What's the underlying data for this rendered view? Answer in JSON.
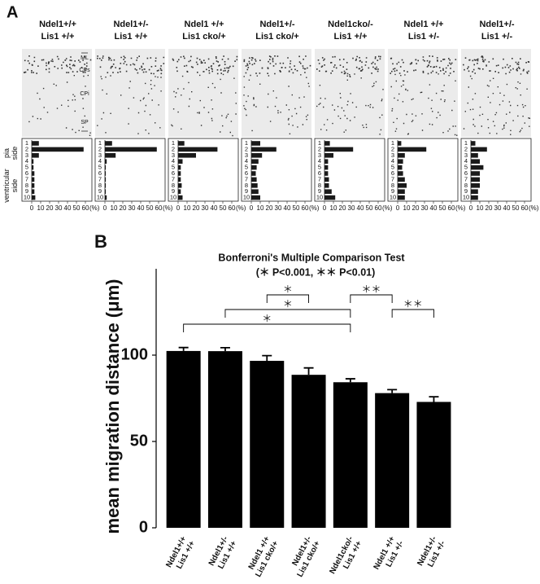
{
  "panel_a": {
    "label": "A",
    "headers": [
      [
        "Ndel1+/+",
        "Lis1 +/+"
      ],
      [
        "Ndel1+/-",
        "Lis1 +/+"
      ],
      [
        "Ndel1 +/+",
        "Lis1 cko/+"
      ],
      [
        "Ndel1+/-",
        "Lis1 cko/+"
      ],
      [
        "Ndel1cko/-",
        "Lis1 +/+"
      ],
      [
        "Ndel1 +/+",
        "Lis1 +/-"
      ],
      [
        "Ndel1+/-",
        "Lis1 +/-"
      ]
    ],
    "layers": [
      "ML",
      "CPs",
      "CPi",
      "SP"
    ],
    "side_labels": [
      [
        "pia",
        "side"
      ],
      [
        "ventricular",
        "side"
      ]
    ]
  },
  "panel_b": {
    "label": "B"
  },
  "chart_data": [
    {
      "type": "bar",
      "orientation": "horizontal",
      "categories": [
        "1",
        "2",
        "3",
        "4",
        "5",
        "6",
        "7",
        "8",
        "9",
        "10"
      ],
      "values": [
        8,
        58,
        8,
        2,
        2,
        3,
        3,
        3,
        3,
        4
      ],
      "xlim": [
        0,
        60
      ],
      "xticks": [
        0,
        10,
        20,
        30,
        40,
        50,
        60
      ],
      "x_label": "(%)",
      "color": "#1a1a1a"
    },
    {
      "type": "bar",
      "orientation": "horizontal",
      "categories": [
        "1",
        "2",
        "3",
        "4",
        "5",
        "6",
        "7",
        "8",
        "9",
        "10"
      ],
      "values": [
        8,
        58,
        12,
        2,
        1,
        1,
        1,
        1,
        1,
        2
      ],
      "xlim": [
        0,
        60
      ],
      "xticks": [
        0,
        10,
        20,
        30,
        40,
        50,
        60
      ],
      "x_label": "(%)",
      "color": "#1a1a1a"
    },
    {
      "type": "bar",
      "orientation": "horizontal",
      "categories": [
        "1",
        "2",
        "3",
        "4",
        "5",
        "6",
        "7",
        "8",
        "9",
        "10"
      ],
      "values": [
        7,
        44,
        20,
        5,
        3,
        3,
        3,
        4,
        3,
        5
      ],
      "xlim": [
        0,
        60
      ],
      "xticks": [
        0,
        10,
        20,
        30,
        40,
        50,
        60
      ],
      "x_label": "(%)",
      "color": "#1a1a1a"
    },
    {
      "type": "bar",
      "orientation": "horizontal",
      "categories": [
        "1",
        "2",
        "3",
        "4",
        "5",
        "6",
        "7",
        "8",
        "9",
        "10"
      ],
      "values": [
        10,
        28,
        12,
        8,
        6,
        5,
        6,
        7,
        8,
        10
      ],
      "xlim": [
        0,
        60
      ],
      "xticks": [
        0,
        10,
        20,
        30,
        40,
        50,
        60
      ],
      "x_label": "(%)",
      "color": "#1a1a1a"
    },
    {
      "type": "bar",
      "orientation": "horizontal",
      "categories": [
        "1",
        "2",
        "3",
        "4",
        "5",
        "6",
        "7",
        "8",
        "9",
        "10"
      ],
      "values": [
        6,
        32,
        10,
        4,
        4,
        4,
        5,
        5,
        8,
        12
      ],
      "xlim": [
        0,
        60
      ],
      "xticks": [
        0,
        10,
        20,
        30,
        40,
        50,
        60
      ],
      "x_label": "(%)",
      "color": "#1a1a1a"
    },
    {
      "type": "bar",
      "orientation": "horizontal",
      "categories": [
        "1",
        "2",
        "3",
        "4",
        "5",
        "6",
        "7",
        "8",
        "9",
        "10"
      ],
      "values": [
        4,
        32,
        8,
        6,
        5,
        6,
        8,
        10,
        8,
        8
      ],
      "xlim": [
        0,
        60
      ],
      "xticks": [
        0,
        10,
        20,
        30,
        40,
        50,
        60
      ],
      "x_label": "(%)",
      "color": "#1a1a1a"
    },
    {
      "type": "bar",
      "orientation": "horizontal",
      "categories": [
        "1",
        "2",
        "3",
        "4",
        "5",
        "6",
        "7",
        "8",
        "9",
        "10"
      ],
      "values": [
        5,
        18,
        8,
        10,
        14,
        10,
        10,
        10,
        8,
        8
      ],
      "xlim": [
        0,
        60
      ],
      "xticks": [
        0,
        10,
        20,
        30,
        40,
        50,
        60
      ],
      "x_label": "(%)",
      "color": "#1a1a1a"
    },
    {
      "type": "bar",
      "orientation": "vertical",
      "title": "Bonferroni's Multiple Comparison Test",
      "subtitle": "(＊ P<0.001, ＊＊ P<0.01)",
      "y_label": "mean migration distance (μm)",
      "categories": [
        [
          "Ndel1+/+",
          "Lis1 +/+"
        ],
        [
          "Ndel1+/-",
          "Lis1 +/+"
        ],
        [
          "Ndel1 +/+",
          "Lis1 cko/+"
        ],
        [
          "Ndel1+/-",
          "Lis1 cko/+"
        ],
        [
          "Ndel1cko/-",
          "Lis1 +/+"
        ],
        [
          "Ndel1 +/+",
          "Lis1 +/-"
        ],
        [
          "Ndel1+/-",
          "Lis1 +/-"
        ]
      ],
      "values": [
        102.4,
        102.3,
        96.7,
        88.6,
        84.3,
        78,
        72.9
      ],
      "errors": [
        2,
        2,
        3,
        4,
        2,
        2,
        3
      ],
      "ylim": [
        0,
        150
      ],
      "yticks": [
        0,
        50,
        100
      ],
      "color": "#000000",
      "comparisons": [
        {
          "from": 2,
          "to": 3,
          "label": "＊"
        },
        {
          "from": 4,
          "to": 5,
          "label": "＊＊"
        },
        {
          "from": 1,
          "to": 4,
          "label": "＊"
        },
        {
          "from": 5,
          "to": 6,
          "label": "＊＊"
        },
        {
          "from": 0,
          "to": 4,
          "label": "＊"
        }
      ]
    }
  ]
}
